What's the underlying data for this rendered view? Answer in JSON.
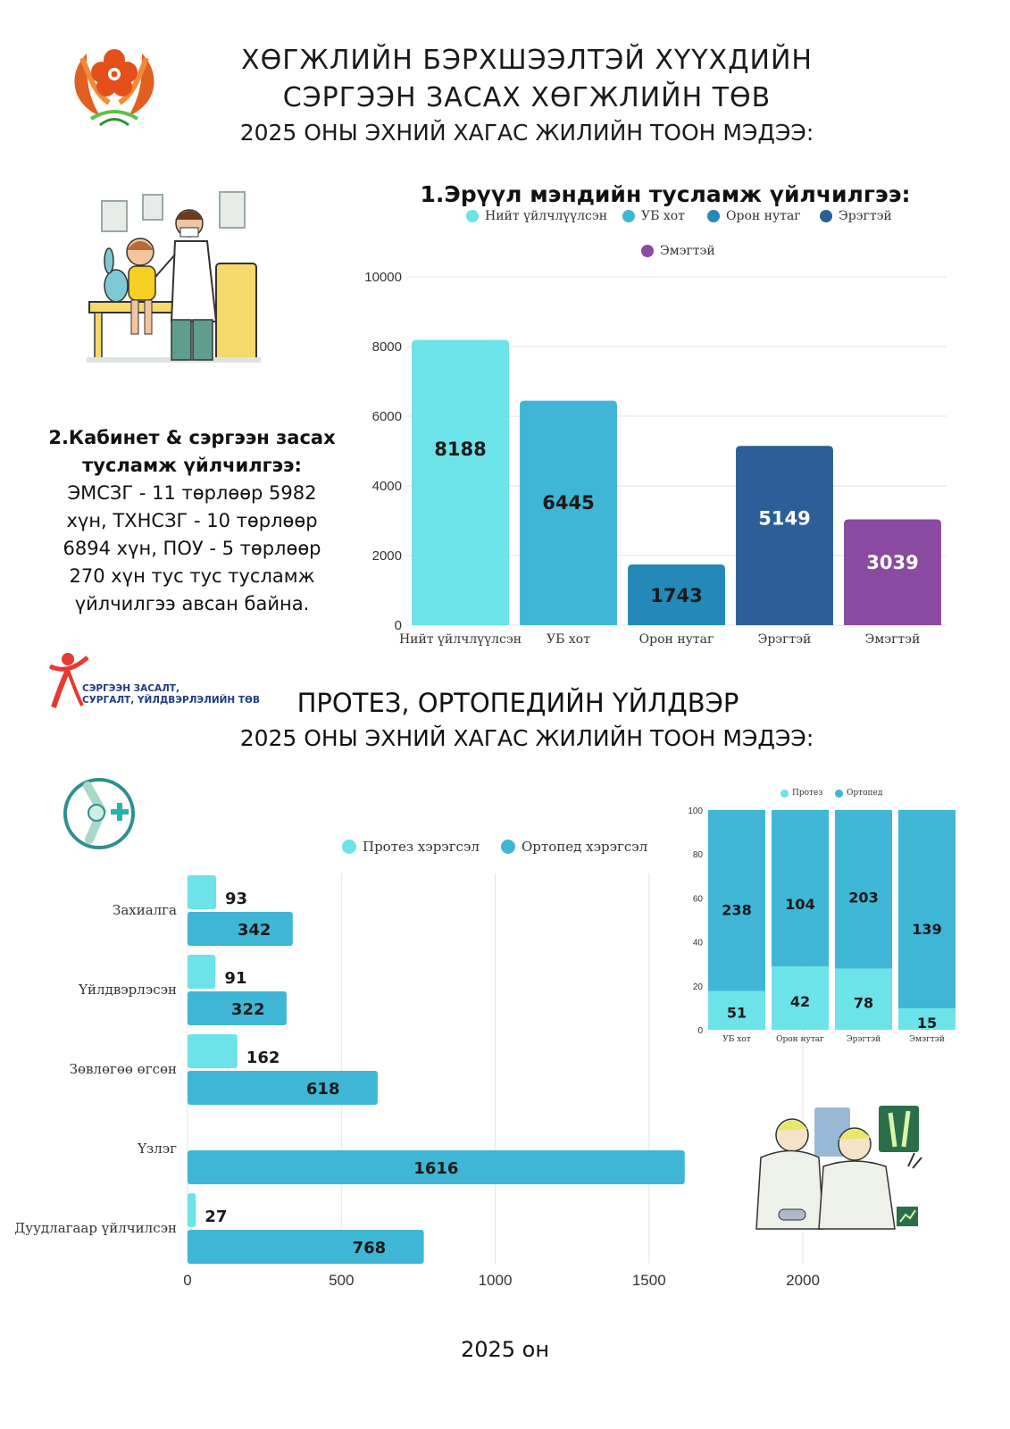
{
  "header": {
    "line1": "ХӨГЖЛИЙН БЭРХШЭЭЛТЭЙ ХҮҮХДИЙН",
    "line2": "СЭРГЭЭН ЗАСАХ ХӨГЖЛИЙН ТӨВ",
    "line3": "2025 ОНЫ ЭХНИЙ ХАГАС ЖИЛИЙН ТООН МЭДЭЭ:"
  },
  "section1": {
    "title": "1.Эрүүл мэндийн тусламж үйлчилгээ:"
  },
  "section2": {
    "heading_line1": "2.Кабинет & сэргээн засах",
    "heading_line2": "тусламж үйлчилгээ:",
    "body_lines": [
      "ЭМСЗГ - 11 төрлөөр 5982",
      "хүн, ТХНСЗГ - 10 төрлөөр",
      "6894 хүн, ПОУ - 5 төрлөөр",
      "270 хүн тус тус тусламж",
      "үйлчилгээ авсан байна."
    ]
  },
  "prosthetics": {
    "logo_text_line1": "СЭРГЭЭН ЗАСАЛТ,",
    "logo_text_line2": "СУРГАЛТ, ҮЙЛДВЭРЛЭЛИЙН ТӨВ",
    "title": "ПРОТЕЗ, ОРТОПЕДИЙН ҮЙЛДВЭР",
    "subtitle": "2025 ОНЫ ЭХНИЙ ХАГАС ЖИЛИЙН ТООН МЭДЭЭ:"
  },
  "footer": {
    "text": "2025 он"
  },
  "chart_data": [
    {
      "type": "bar",
      "categories": [
        "Нийт үйлчлүүлсэн",
        "УБ хот",
        "Орон нутаг",
        "Эрэгтэй",
        "Эмэгтэй"
      ],
      "values": [
        8188,
        6445,
        1743,
        5149,
        3039
      ],
      "legend": [
        "Нийт үйлчлүүлсэн",
        "УБ хот",
        "Орон нутаг",
        "Эрэгтэй",
        "Эмэгтэй"
      ],
      "colors": [
        "#6ce3e8",
        "#3fb6d6",
        "#2489b9",
        "#2c5e97",
        "#8a4aa1"
      ],
      "ylim": [
        0,
        10000
      ],
      "yticks": [
        0,
        2000,
        4000,
        6000,
        8000,
        10000
      ],
      "grid": true,
      "legend_position": "top"
    },
    {
      "type": "bar",
      "orientation": "horizontal",
      "categories": [
        "Захиалга",
        "Үйлдвэрлэсэн",
        "Зөвлөгөө өгсөн",
        "Үзлэг",
        "Дуудлагаар үйлчилсэн"
      ],
      "series": [
        {
          "name": "Протез хэрэгсэл",
          "values": [
            93,
            91,
            162,
            0,
            27
          ],
          "color": "#6ce3e8"
        },
        {
          "name": "Ортопед хэрэгсэл",
          "values": [
            342,
            322,
            618,
            1616,
            768
          ],
          "color": "#3fb6d6"
        }
      ],
      "xlim": [
        0,
        2500
      ],
      "xticks": [
        0,
        500,
        1000,
        1500,
        2000
      ],
      "grid": true,
      "legend_position": "top"
    },
    {
      "type": "bar",
      "stacked": true,
      "normalized": true,
      "categories": [
        "УБ хот",
        "Орон нутаг",
        "Эрэгтэй",
        "Эмэгтэй"
      ],
      "series": [
        {
          "name": "Протез",
          "values": [
            51,
            42,
            78,
            15
          ],
          "color": "#6ce3e8"
        },
        {
          "name": "Ортопед",
          "values": [
            238,
            104,
            203,
            139
          ],
          "color": "#3fb6d6"
        }
      ],
      "ylim": [
        0,
        100
      ],
      "yticks": [
        0,
        20,
        40,
        60,
        80,
        100
      ],
      "legend_position": "top"
    }
  ]
}
